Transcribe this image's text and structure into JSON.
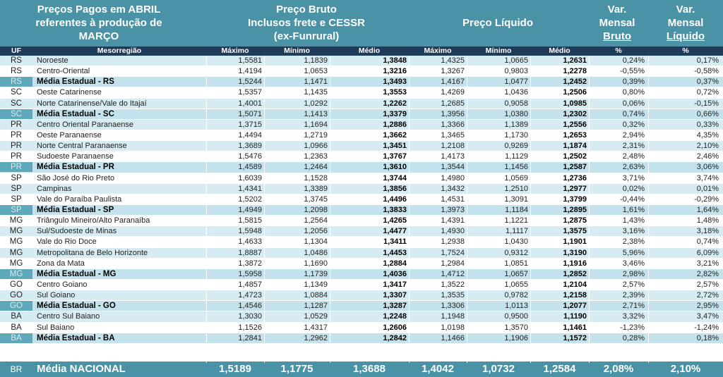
{
  "header": {
    "title_line1": "Preços Pagos em ABRIL",
    "title_line2": "referentes à produção de",
    "title_line3": "MARÇO",
    "bruto_line1": "Preço Bruto",
    "bruto_line2": "Inclusos frete e CESSR",
    "bruto_line3": "(ex-Funrural)",
    "liquido": "Preço Líquido",
    "var_bruto_line1": "Var.",
    "var_bruto_line2": "Mensal",
    "var_bruto_line3": "Bruto",
    "var_liq_line1": "Var.",
    "var_liq_line2": "Mensal",
    "var_liq_line3": "Líquido"
  },
  "columns": {
    "uf": "UF",
    "meso": "Mesorregião",
    "max_b": "Máximo",
    "min_b": "Mínimo",
    "med_b": "Médio",
    "max_l": "Máximo",
    "min_l": "Mínimo",
    "med_l": "Médio",
    "pct_b": "%",
    "pct_l": "%"
  },
  "rows": [
    {
      "uf": "RS",
      "meso": "Noroeste",
      "v": [
        "1,5581",
        "1,1839",
        "1,3848",
        "1,4325",
        "1,0665",
        "1,2631",
        "0,24%",
        "0,17%"
      ]
    },
    {
      "uf": "RS",
      "meso": "Centro-Oriental",
      "v": [
        "1,4194",
        "1,0653",
        "1,3216",
        "1,3267",
        "0,9803",
        "1,2278",
        "-0,55%",
        "-0,58%"
      ]
    },
    {
      "uf": "RS",
      "meso": "Média Estadual - RS",
      "v": [
        "1,5244",
        "1,1471",
        "1,3493",
        "1,4167",
        "1,0477",
        "1,2452",
        "0,39%",
        "0,37%"
      ]
    },
    {
      "uf": "SC",
      "meso": "Oeste Catarinense",
      "v": [
        "1,5357",
        "1,1435",
        "1,3553",
        "1,4269",
        "1,0436",
        "1,2506",
        "0,80%",
        "0,72%"
      ]
    },
    {
      "uf": "SC",
      "meso": "Norte Catarinense/Vale do Itajaí",
      "v": [
        "1,4001",
        "1,0292",
        "1,2262",
        "1,2685",
        "0,9058",
        "1,0985",
        "0,06%",
        "-0,15%"
      ]
    },
    {
      "uf": "SC",
      "meso": "Média Estadual - SC",
      "v": [
        "1,5071",
        "1,1413",
        "1,3379",
        "1,3956",
        "1,0380",
        "1,2302",
        "0,74%",
        "0,66%"
      ]
    },
    {
      "uf": "PR",
      "meso": "Centro Oriental Paranaense",
      "v": [
        "1,3715",
        "1,1694",
        "1,2886",
        "1,3366",
        "1,1389",
        "1,2556",
        "0,32%",
        "0,33%"
      ]
    },
    {
      "uf": "PR",
      "meso": "Oeste Paranaense",
      "v": [
        "1,4494",
        "1,2719",
        "1,3662",
        "1,3465",
        "1,1730",
        "1,2653",
        "2,94%",
        "4,35%"
      ]
    },
    {
      "uf": "PR",
      "meso": "Norte Central Paranaense",
      "v": [
        "1,3689",
        "1,0966",
        "1,3451",
        "1,2108",
        "0,9269",
        "1,1874",
        "2,31%",
        "2,10%"
      ]
    },
    {
      "uf": "PR",
      "meso": "Sudoeste Paranaense",
      "v": [
        "1,5476",
        "1,2363",
        "1,3767",
        "1,4173",
        "1,1129",
        "1,2502",
        "2,48%",
        "2,46%"
      ]
    },
    {
      "uf": "PR",
      "meso": "Média Estadual - PR",
      "v": [
        "1,4589",
        "1,2464",
        "1,3610",
        "1,3544",
        "1,1456",
        "1,2587",
        "2,63%",
        "3,06%"
      ]
    },
    {
      "uf": "SP",
      "meso": "São José do Rio Preto",
      "v": [
        "1,6039",
        "1,1528",
        "1,3744",
        "1,4980",
        "1,0569",
        "1,2736",
        "3,71%",
        "3,74%"
      ]
    },
    {
      "uf": "SP",
      "meso": "Campinas",
      "v": [
        "1,4341",
        "1,3389",
        "1,3856",
        "1,3432",
        "1,2510",
        "1,2977",
        "0,02%",
        "0,01%"
      ]
    },
    {
      "uf": "SP",
      "meso": "Vale do Paraíba Paulista",
      "v": [
        "1,5202",
        "1,3745",
        "1,4496",
        "1,4531",
        "1,3091",
        "1,3799",
        "-0,44%",
        "-0,29%"
      ]
    },
    {
      "uf": "SP",
      "meso": "Média Estadual - SP",
      "v": [
        "1,4949",
        "1,2098",
        "1,3833",
        "1,3973",
        "1,1184",
        "1,2895",
        "1,61%",
        "1,64%"
      ]
    },
    {
      "uf": "MG",
      "meso": "Triângulo Mineiro/Alto Paranaíba",
      "v": [
        "1,5815",
        "1,2564",
        "1,4265",
        "1,4391",
        "1,1221",
        "1,2875",
        "1,43%",
        "1,48%"
      ]
    },
    {
      "uf": "MG",
      "meso": "Sul/Sudoeste de Minas",
      "v": [
        "1,5948",
        "1,2056",
        "1,4477",
        "1,4930",
        "1,1117",
        "1,3575",
        "3,16%",
        "3,18%"
      ]
    },
    {
      "uf": "MG",
      "meso": "Vale do Rio Doce",
      "v": [
        "1,4633",
        "1,1304",
        "1,3411",
        "1,2938",
        "1,0430",
        "1,1901",
        "2,38%",
        "0,74%"
      ]
    },
    {
      "uf": "MG",
      "meso": "Metropolitana de Belo Horizonte",
      "v": [
        "1,8887",
        "1,0486",
        "1,4453",
        "1,7524",
        "0,9312",
        "1,3190",
        "5,96%",
        "6,09%"
      ]
    },
    {
      "uf": "MG",
      "meso": "Zona da Mata",
      "v": [
        "1,3872",
        "1,1690",
        "1,2884",
        "1,2984",
        "1,0851",
        "1,1916",
        "3,46%",
        "3,21%"
      ]
    },
    {
      "uf": "MG",
      "meso": "Média Estadual - MG",
      "v": [
        "1,5958",
        "1,1739",
        "1,4036",
        "1,4712",
        "1,0657",
        "1,2852",
        "2,98%",
        "2,82%"
      ]
    },
    {
      "uf": "GO",
      "meso": "Centro Goiano",
      "v": [
        "1,4857",
        "1,1349",
        "1,3417",
        "1,3522",
        "1,0655",
        "1,2104",
        "2,57%",
        "2,57%"
      ]
    },
    {
      "uf": "GO",
      "meso": "Sul Goiano",
      "v": [
        "1,4723",
        "1,0884",
        "1,3307",
        "1,3535",
        "0,9782",
        "1,2158",
        "2,39%",
        "2,72%"
      ]
    },
    {
      "uf": "GO",
      "meso": "Média Estadual - GO",
      "v": [
        "1,4546",
        "1,1287",
        "1,3287",
        "1,3306",
        "1,0113",
        "1,2077",
        "2,71%",
        "2,95%"
      ]
    },
    {
      "uf": "BA",
      "meso": "Centro Sul Baiano",
      "v": [
        "1,3030",
        "1,0529",
        "1,2248",
        "1,1948",
        "0,9500",
        "1,1190",
        "3,32%",
        "3,47%"
      ]
    },
    {
      "uf": "BA",
      "meso": "Sul Baiano",
      "v": [
        "1,1526",
        "1,4317",
        "1,2606",
        "1,0198",
        "1,3570",
        "1,1461",
        "-1,23%",
        "-1,24%"
      ]
    },
    {
      "uf": "BA",
      "meso": "Média Estadual - BA",
      "v": [
        "1,2841",
        "1,2962",
        "1,2842",
        "1,1466",
        "1,1906",
        "1,1572",
        "0,28%",
        "0,18%"
      ]
    }
  ],
  "footer": {
    "uf": "BR",
    "label": "Média NACIONAL",
    "v": [
      "1,5189",
      "1,1775",
      "1,3688",
      "1,4042",
      "1,0732",
      "1,2584",
      "2,08%",
      "2,10%"
    ]
  },
  "colors": {
    "header_bg": "#4a93a6",
    "column_header_bg": "#1f3b5a",
    "row_alt_bg": "#d6ecf2",
    "state_avg_uf_bg": "#5ea8bb"
  }
}
